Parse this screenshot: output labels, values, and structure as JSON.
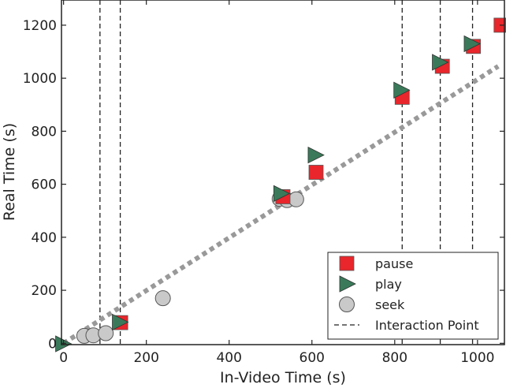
{
  "chart_data": {
    "type": "scatter",
    "title": "",
    "xlabel": "In-Video Time (s)",
    "ylabel": "Real Time (s)",
    "xlim": [
      -5,
      1065
    ],
    "ylim": [
      -5,
      1295
    ],
    "xticks": [
      0,
      200,
      400,
      600,
      800,
      1000
    ],
    "yticks": [
      0,
      200,
      400,
      600,
      800,
      1000,
      1200
    ],
    "grid": false,
    "legend": "bottom-right",
    "reference_line": {
      "x": [
        0,
        1050
      ],
      "y": [
        0,
        1045
      ],
      "style": "dotted",
      "color": "#999999"
    },
    "interaction_points": [
      88,
      137,
      818,
      910,
      988
    ],
    "series": [
      {
        "name": "pause",
        "marker": "square",
        "color": "#e8262b",
        "x": [
          138,
          530,
          610,
          818,
          915,
          990,
          1057
        ],
        "y": [
          78,
          553,
          645,
          928,
          1045,
          1120,
          1200
        ]
      },
      {
        "name": "play",
        "marker": "triangle-right",
        "color": "#3a7a5a",
        "x": [
          -2,
          135,
          525,
          608,
          815,
          908,
          985
        ],
        "y": [
          -2,
          80,
          565,
          710,
          955,
          1060,
          1130
        ]
      },
      {
        "name": "seek",
        "marker": "circle",
        "color": "#c9c9c9",
        "x": [
          50,
          72,
          102,
          240,
          522,
          540,
          562
        ],
        "y": [
          28,
          30,
          38,
          170,
          545,
          540,
          543
        ]
      }
    ],
    "legend_entries": [
      "pause",
      "play",
      "seek",
      "Interaction Point"
    ]
  }
}
